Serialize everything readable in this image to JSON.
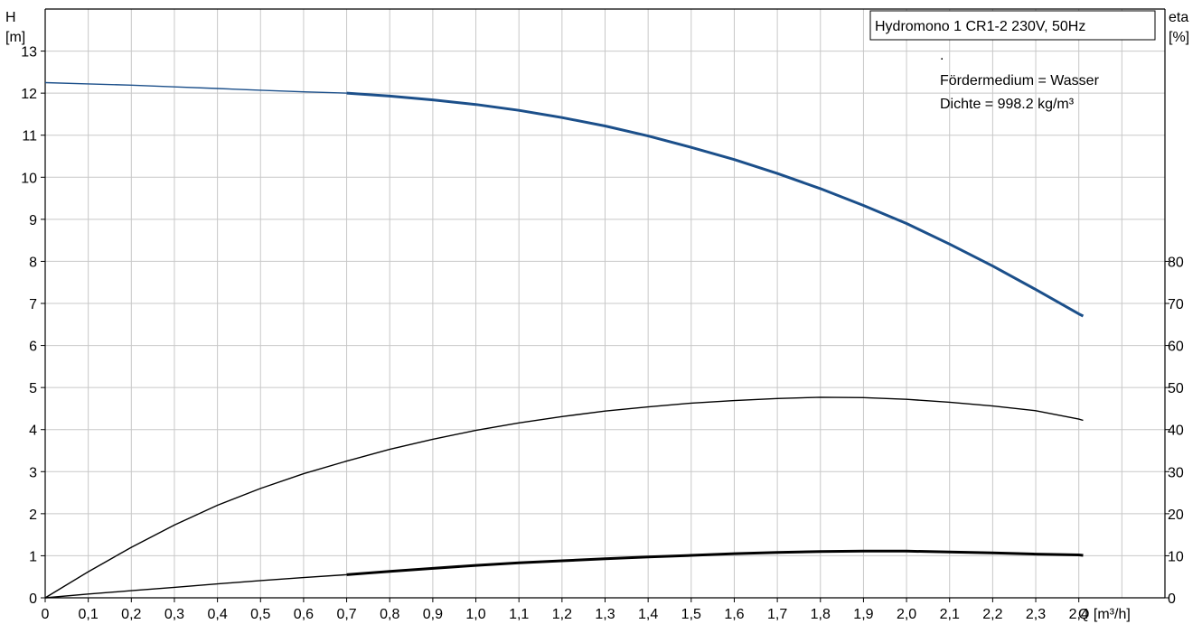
{
  "chart_data": {
    "type": "line",
    "title": "Hydromono 1 CR1-2 230V, 50Hz",
    "notes": [
      ".",
      "Fördermedium = Wasser",
      "Dichte = 998.2 kg/m³"
    ],
    "x_axis": {
      "label": "Q [m³/h]",
      "range": [
        0,
        2.6
      ],
      "ticks": [
        "0",
        "0,1",
        "0,2",
        "0,3",
        "0,4",
        "0,5",
        "0,6",
        "0,7",
        "0,8",
        "0,9",
        "1,0",
        "1,1",
        "1,2",
        "1,3",
        "1,4",
        "1,5",
        "1,6",
        "1,7",
        "1,8",
        "1,9",
        "2,0",
        "2,1",
        "2,2",
        "2,3",
        "2,4"
      ]
    },
    "y_axis_left": {
      "label_line1": "H",
      "label_line2": "[m]",
      "range": [
        0,
        14
      ],
      "ticks": [
        "0",
        "1",
        "2",
        "3",
        "4",
        "5",
        "6",
        "7",
        "8",
        "9",
        "10",
        "11",
        "12",
        "13"
      ]
    },
    "y_axis_right": {
      "label_line1": "eta",
      "label_line2": "[%]",
      "range": [
        0,
        140
      ],
      "ticks": [
        "0",
        "10",
        "20",
        "30",
        "40",
        "50",
        "60",
        "70",
        "80"
      ]
    },
    "grid": true,
    "series": [
      {
        "axis": "left",
        "color": "#1b4f8a",
        "x": [
          0,
          0.1,
          0.2,
          0.3,
          0.4,
          0.5,
          0.6,
          0.7,
          0.8,
          0.9,
          1.0,
          1.1,
          1.2,
          1.3,
          1.4,
          1.5,
          1.6,
          1.7,
          1.8,
          1.9,
          2.0,
          2.1,
          2.2,
          2.3,
          2.4,
          2.41
        ],
        "y": [
          12.25,
          12.22,
          12.19,
          12.15,
          12.11,
          12.07,
          12.03,
          12.0,
          11.93,
          11.84,
          11.73,
          11.59,
          11.42,
          11.22,
          10.98,
          10.71,
          10.42,
          10.09,
          9.73,
          9.33,
          8.9,
          8.41,
          7.89,
          7.33,
          6.75,
          6.7
        ],
        "bold_from_x": 0.7
      },
      {
        "axis": "right",
        "color": "#000000",
        "x": [
          0,
          0.1,
          0.2,
          0.3,
          0.4,
          0.5,
          0.6,
          0.7,
          0.8,
          0.9,
          1.0,
          1.1,
          1.2,
          1.3,
          1.4,
          1.5,
          1.6,
          1.7,
          1.8,
          1.9,
          2.0,
          2.1,
          2.2,
          2.3,
          2.4,
          2.41
        ],
        "y": [
          0,
          6.2,
          12.0,
          17.3,
          22.0,
          26.0,
          29.5,
          32.5,
          35.3,
          37.7,
          39.8,
          41.6,
          43.1,
          44.4,
          45.4,
          46.3,
          46.9,
          47.4,
          47.7,
          47.6,
          47.2,
          46.5,
          45.6,
          44.5,
          42.5,
          42.2
        ],
        "bold_from_x": null
      },
      {
        "axis": "left",
        "color": "#000000",
        "x": [
          0,
          0.1,
          0.2,
          0.3,
          0.4,
          0.5,
          0.6,
          0.7,
          0.8,
          0.9,
          1.0,
          1.1,
          1.2,
          1.3,
          1.4,
          1.5,
          1.6,
          1.7,
          1.8,
          1.9,
          2.0,
          2.1,
          2.2,
          2.3,
          2.4,
          2.41
        ],
        "y": [
          0,
          0.09,
          0.17,
          0.25,
          0.33,
          0.41,
          0.48,
          0.55,
          0.63,
          0.7,
          0.77,
          0.83,
          0.88,
          0.93,
          0.97,
          1.01,
          1.05,
          1.08,
          1.1,
          1.11,
          1.11,
          1.09,
          1.07,
          1.04,
          1.02,
          1.01
        ],
        "bold_from_x": 0.7
      }
    ]
  }
}
